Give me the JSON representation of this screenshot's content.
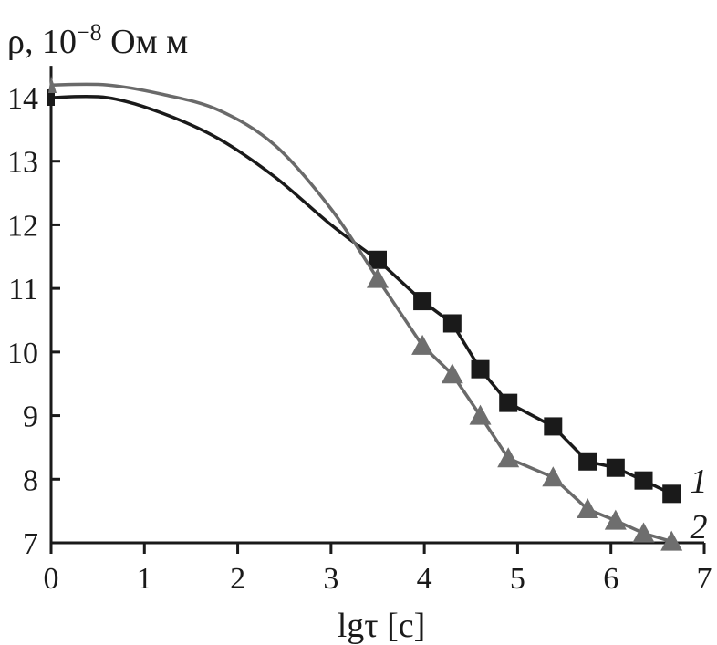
{
  "chart_data": {
    "type": "line",
    "ylabel_main": "ρ, 10",
    "ylabel_exp": "−8",
    "ylabel_unit": " Ом м",
    "xlabel": "lgτ [с]",
    "xlim": [
      0,
      7
    ],
    "ylim": [
      7,
      14.5
    ],
    "xticks": [
      "0",
      "1",
      "2",
      "3",
      "4",
      "5",
      "6",
      "7"
    ],
    "yticks": [
      "7",
      "8",
      "9",
      "10",
      "11",
      "12",
      "13",
      "14"
    ],
    "grid": false,
    "legend": "inline-right",
    "colors": {
      "curve1": "#1a1a1a",
      "curve2": "#6a6a6a",
      "marker1": "#1a1a1a",
      "marker2": "#6e6e6e"
    },
    "series": [
      {
        "name": "1",
        "marker": "square",
        "curve": [
          [
            0,
            14.0
          ],
          [
            0.6,
            14.0
          ],
          [
            1.2,
            13.75
          ],
          [
            1.8,
            13.35
          ],
          [
            2.4,
            12.75
          ],
          [
            3.0,
            12.0
          ],
          [
            3.5,
            11.45
          ]
        ],
        "points": [
          [
            3.5,
            11.45
          ],
          [
            3.98,
            10.8
          ],
          [
            4.3,
            10.45
          ],
          [
            4.6,
            9.73
          ],
          [
            4.9,
            9.2
          ],
          [
            5.38,
            8.83
          ],
          [
            5.75,
            8.28
          ],
          [
            6.05,
            8.18
          ],
          [
            6.35,
            7.98
          ],
          [
            6.65,
            7.77
          ]
        ]
      },
      {
        "name": "2",
        "marker": "triangle",
        "curve": [
          [
            0,
            14.2
          ],
          [
            0.6,
            14.2
          ],
          [
            1.2,
            14.05
          ],
          [
            1.8,
            13.8
          ],
          [
            2.4,
            13.25
          ],
          [
            3.0,
            12.25
          ],
          [
            3.5,
            11.15
          ]
        ],
        "points": [
          [
            3.5,
            11.15
          ],
          [
            3.98,
            10.1
          ],
          [
            4.3,
            9.65
          ],
          [
            4.6,
            9.0
          ],
          [
            4.9,
            8.33
          ],
          [
            5.38,
            8.03
          ],
          [
            5.75,
            7.53
          ],
          [
            6.05,
            7.35
          ],
          [
            6.35,
            7.15
          ],
          [
            6.65,
            7.02
          ]
        ]
      }
    ]
  }
}
